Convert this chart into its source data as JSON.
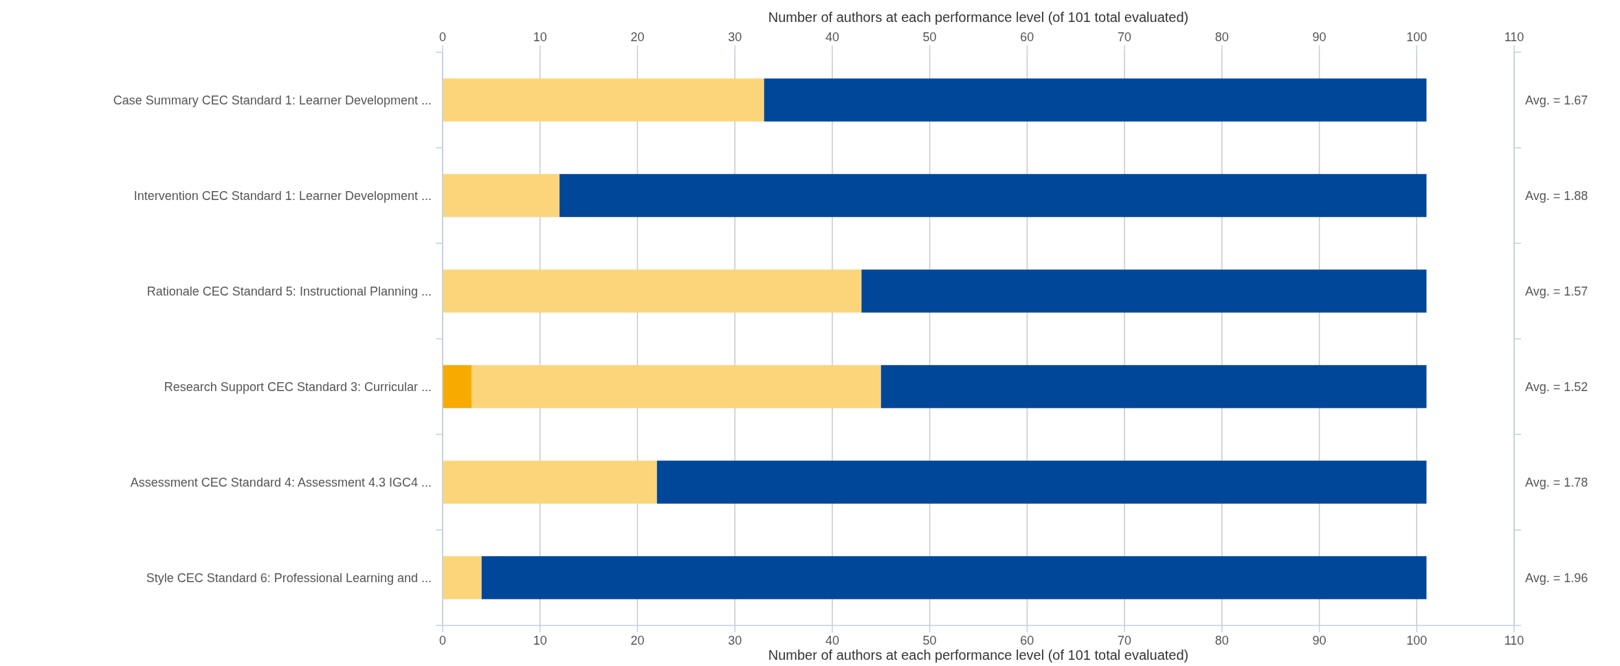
{
  "chart_data": {
    "type": "bar",
    "orientation": "horizontal",
    "stacked": true,
    "categories": [
      "Case Summary CEC Standard 1: Learner Development ...",
      "Intervention CEC Standard 1: Learner Development ...",
      "Rationale CEC Standard 5: Instructional Planning ...",
      "Research Support CEC Standard 3: Curricular ...",
      "Assessment CEC Standard 4: Assessment 4.3 IGC4 ...",
      "Style CEC Standard 6: Professional Learning and ..."
    ],
    "series": [
      {
        "color": "#f8aa00",
        "values": [
          0,
          0,
          0,
          3,
          0,
          0
        ]
      },
      {
        "color": "#fcd57b",
        "values": [
          33,
          12,
          43,
          42,
          22,
          4
        ]
      },
      {
        "color": "#00479a",
        "values": [
          68,
          89,
          58,
          56,
          79,
          97
        ]
      }
    ],
    "xlabel": "Number of authors at each performance level (of 101 total evaluated)",
    "x2label": "Number of authors at each performance level (of 101 total evaluated)",
    "xlim": [
      0,
      110
    ],
    "xticks": [
      0,
      10,
      20,
      30,
      40,
      50,
      60,
      70,
      80,
      90,
      100,
      110
    ],
    "x2lim": [
      0,
      110
    ],
    "x2ticks": [
      0,
      10,
      20,
      30,
      40,
      50,
      60,
      70,
      80,
      90,
      100,
      110
    ],
    "grid": "x",
    "annotations": [
      "Avg. = 1.67",
      "Avg. = 1.88",
      "Avg. = 1.57",
      "Avg. = 1.52",
      "Avg. = 1.78",
      "Avg. = 1.96"
    ]
  }
}
